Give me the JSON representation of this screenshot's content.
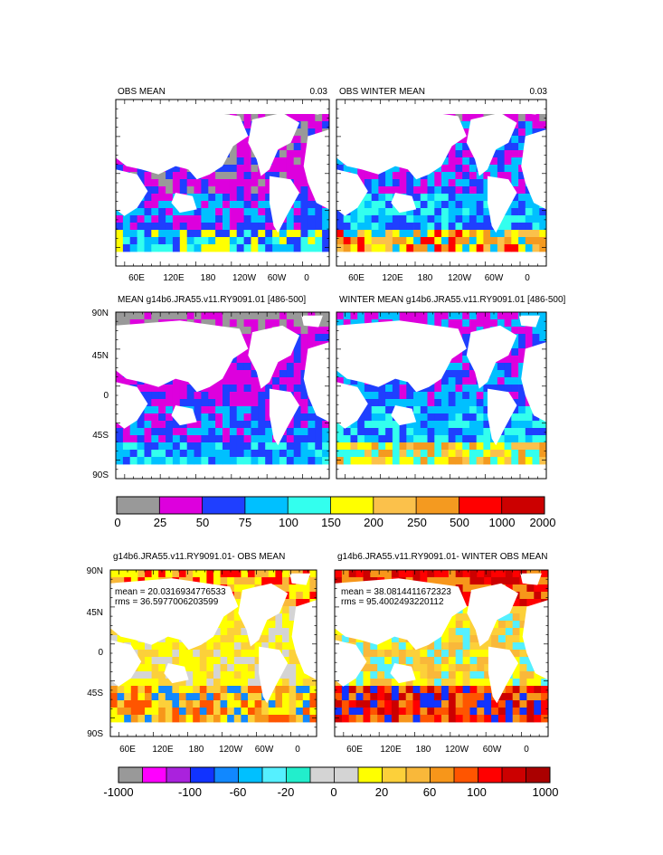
{
  "panels": [
    {
      "id": "p1",
      "left_title": "OBS MEAN",
      "right_title": "0.03",
      "scheme": "obs",
      "seed": 11,
      "yticks": [],
      "xticks": [
        "60E",
        "120E",
        "180",
        "120W",
        "60W",
        "0"
      ]
    },
    {
      "id": "p2",
      "left_title": "OBS WINTER MEAN",
      "right_title": "0.03",
      "scheme": "obsw",
      "seed": 23,
      "yticks": [],
      "xticks": [
        "60E",
        "120E",
        "180",
        "120W",
        "60W",
        "0"
      ]
    },
    {
      "id": "p3",
      "left_title": "MEAN g14b6.JRA55.v11.RY9091.01 [486-500]",
      "right_title": "",
      "scheme": "model",
      "seed": 37,
      "yticks": [
        "90N",
        "45N",
        "0",
        "45S",
        "90S"
      ],
      "xticks": []
    },
    {
      "id": "p4",
      "left_title": "WINTER MEAN g14b6.JRA55.v11.RY9091.01 [486-500]",
      "right_title": "",
      "scheme": "modelw",
      "seed": 53,
      "yticks": [],
      "xticks": []
    },
    {
      "id": "p5",
      "left_title": "g14b6.JRA55.v11.RY9091.01- OBS MEAN",
      "right_title": "",
      "scheme": "diff",
      "seed": 71,
      "yticks": [
        "90N",
        "45N",
        "0",
        "45S",
        "90S"
      ],
      "xticks": [
        "60E",
        "120E",
        "180",
        "120W",
        "60W",
        "0"
      ],
      "stats": [
        "mean = 20.0316934776533",
        "rms = 36.5977006203599"
      ]
    },
    {
      "id": "p6",
      "left_title": "g14b6.JRA55.v11.RY9091.01- WINTER OBS MEAN",
      "right_title": "",
      "scheme": "diffw",
      "seed": 89,
      "yticks": [],
      "xticks": [
        "60E",
        "120E",
        "180",
        "120W",
        "60W",
        "0"
      ],
      "stats": [
        "mean = 38.0814411672323",
        "rms = 95.4002493220112"
      ]
    }
  ],
  "colorbar1": {
    "colors": [
      "#999999",
      "#dd00dd",
      "#1f3fff",
      "#00c0ff",
      "#33ffee",
      "#ffff00",
      "#fbc14b",
      "#f49a20",
      "#ff0000",
      "#cc0000"
    ],
    "labels": [
      "0",
      "25",
      "50",
      "75",
      "100",
      "150",
      "200",
      "250",
      "500",
      "1000",
      "2000"
    ]
  },
  "colorbar2": {
    "colors": [
      "#999999",
      "#ff00ff",
      "#aa22dd",
      "#1133ff",
      "#1188ff",
      "#00c0ff",
      "#55f0ff",
      "#22eecc",
      "#d4d4d4",
      "#d4d4d4",
      "#ffff00",
      "#fcd03a",
      "#f9b83a",
      "#f7961a",
      "#ff5500",
      "#ff0000",
      "#cc0000",
      "#aa0000"
    ],
    "labels": [
      "-1000",
      "-100",
      "-60",
      "-20",
      "0",
      "20",
      "60",
      "100",
      "1000"
    ],
    "label_slots": [
      0,
      3,
      4,
      5,
      6,
      7,
      8,
      9,
      10
    ]
  }
}
